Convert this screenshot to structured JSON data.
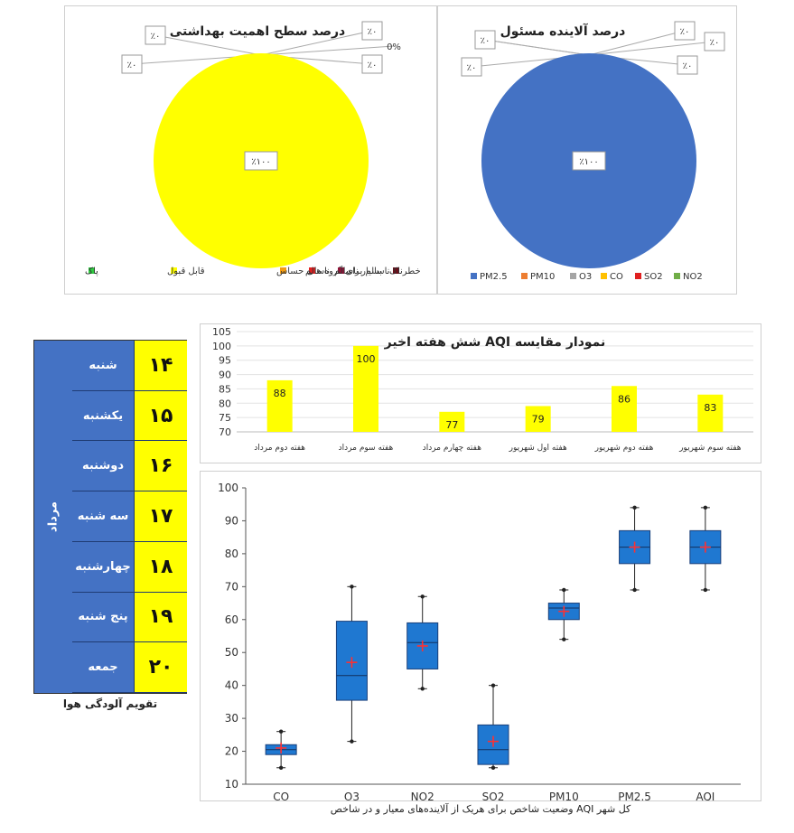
{
  "chart_data": [
    {
      "type": "pie",
      "title": "درصد سطح اهمیت بهداشتی",
      "slices": [
        {
          "label": "پاک",
          "value": 0,
          "color": "#2ecc40"
        },
        {
          "label": "قابل قبول",
          "value": 100,
          "color": "#ffff00"
        },
        {
          "label": "ناسالم برای گروه های حساس",
          "value": 0,
          "color": "#f39c12"
        },
        {
          "label": "ناسالم",
          "value": 0,
          "color": "#e02020"
        },
        {
          "label": "بسیار ناسالم",
          "value": 0,
          "color": "#8e1538"
        },
        {
          "label": "خطرناک",
          "value": 0,
          "color": "#6b0f1a"
        }
      ],
      "center_label": "٪۱۰۰",
      "callouts": [
        "٪۰",
        "٪۰",
        "٪۰",
        "0%",
        "٪۰"
      ],
      "legend": "bottom"
    },
    {
      "type": "pie",
      "title": "درصد آلاینده مسئول",
      "slices": [
        {
          "label": "PM2.5",
          "value": 100,
          "color": "#4472c4"
        },
        {
          "label": "PM10",
          "value": 0,
          "color": "#ed7d31"
        },
        {
          "label": "O3",
          "value": 0,
          "color": "#a5a5a5"
        },
        {
          "label": "CO",
          "value": 0,
          "color": "#ffc000"
        },
        {
          "label": "SO2",
          "value": 0,
          "color": "#e02020"
        },
        {
          "label": "NO2",
          "value": 0,
          "color": "#70ad47"
        }
      ],
      "center_label": "٪۱۰۰",
      "callouts": [
        "٪۰",
        "٪۰",
        "٪۰",
        "٪۰",
        "٪۰",
        "٪۰"
      ],
      "legend": "bottom"
    },
    {
      "type": "bar",
      "title": "نمودار مقایسه AQI شش هفته اخیر",
      "categories": [
        "هفته دوم مرداد",
        "هفته سوم مرداد",
        "هفته چهارم مرداد",
        "هفته اول شهریور",
        "هفته دوم شهریور",
        "هفته سوم شهریور"
      ],
      "values": [
        88,
        100,
        77,
        79,
        86,
        83
      ],
      "ylim": [
        70,
        105
      ],
      "yticks": [
        70,
        75,
        80,
        85,
        90,
        95,
        100,
        105
      ],
      "color": "#ffff00",
      "grid": true
    },
    {
      "type": "box",
      "title": "وضعیت شاخص برای هریک از آلاینده‌های معیار و در شاخص AQI کل شهر",
      "categories": [
        "CO",
        "O3",
        "NO2",
        "SO2",
        "PM10",
        "PM2.5",
        "AQI"
      ],
      "boxes": [
        {
          "min": 15,
          "q1": 19,
          "median": 20.5,
          "q3": 22,
          "max": 26,
          "mean": 21
        },
        {
          "min": 23,
          "q1": 35.5,
          "median": 43,
          "q3": 59.5,
          "max": 70,
          "mean": 47
        },
        {
          "min": 39,
          "q1": 45,
          "median": 53,
          "q3": 59,
          "max": 67,
          "mean": 52
        },
        {
          "min": 15,
          "q1": 16,
          "median": 20.5,
          "q3": 28,
          "max": 40,
          "mean": 23
        },
        {
          "min": 54,
          "q1": 60,
          "median": 63.5,
          "q3": 65,
          "max": 69,
          "mean": 62.5
        },
        {
          "min": 69,
          "q1": 77,
          "median": 82,
          "q3": 87,
          "max": 94,
          "mean": 82
        },
        {
          "min": 69,
          "q1": 77,
          "median": 82,
          "q3": 87,
          "max": 94,
          "mean": 82
        }
      ],
      "ylim": [
        10,
        100
      ],
      "yticks": [
        10,
        20,
        30,
        40,
        50,
        60,
        70,
        80,
        90,
        100
      ],
      "box_color": "#1f78d1",
      "mean_marker_color": "#ff3030"
    }
  ],
  "calendar": {
    "month": "مرداد",
    "days": [
      {
        "day": "شنبه",
        "num": "۱۴"
      },
      {
        "day": "یکشنبه",
        "num": "۱۵"
      },
      {
        "day": "دوشنبه",
        "num": "۱۶"
      },
      {
        "day": "سه شنبه",
        "num": "۱۷"
      },
      {
        "day": "چهارشنبه",
        "num": "۱۸"
      },
      {
        "day": "پنج شنبه",
        "num": "۱۹"
      },
      {
        "day": "جمعه",
        "num": "۲۰"
      }
    ],
    "caption": "تقویم آلودگی هوا"
  }
}
